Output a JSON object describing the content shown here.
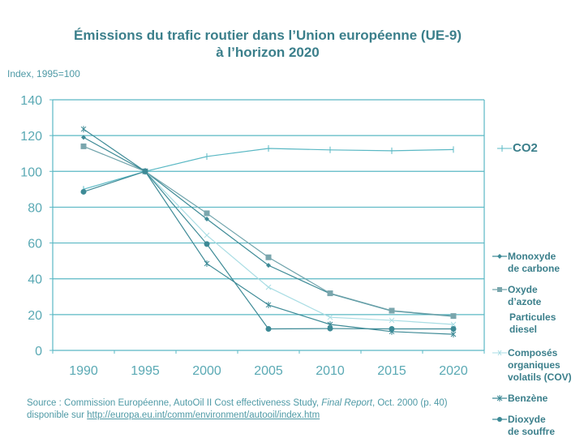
{
  "chart_data": {
    "type": "line",
    "title": "Émissions du trafic routier dans l’Union européenne (UE-9)",
    "subtitle": "à l’horizon 2020",
    "ylabel": "Index, 1995=100",
    "xlabel": "",
    "ylim": [
      0,
      140
    ],
    "yticks": [
      0,
      20,
      40,
      60,
      80,
      100,
      120,
      140
    ],
    "grid": true,
    "legend_position": "right",
    "categories": [
      "1990",
      "1995",
      "2000",
      "2005",
      "2010",
      "2015",
      "2020"
    ],
    "series": [
      {
        "name": "CO2",
        "marker": "plus",
        "color": "#5ab8c4",
        "values": [
          90,
          100,
          108.3,
          112.8,
          112,
          111.5,
          112.2
        ]
      },
      {
        "name": "Monoxyde de carbone",
        "marker": "diamond",
        "color": "#3d8a96",
        "values": [
          119,
          100,
          73.4,
          47.5,
          31.7,
          22,
          19
        ]
      },
      {
        "name": "Oxyde d’azote",
        "marker": "square",
        "color": "#6fa3ab",
        "values": [
          114,
          100,
          76.6,
          52,
          31.9,
          22.2,
          19.2
        ]
      },
      {
        "name": "Particules diesel",
        "marker": "none",
        "color": "#5ab8c4",
        "values": []
      },
      {
        "name": "Composés organiques volatils (COV)",
        "marker": "x",
        "color": "#a9dde4",
        "values": [
          null,
          100,
          64.3,
          35.3,
          18.5,
          16.8,
          14.5
        ]
      },
      {
        "name": "Benzène",
        "marker": "star",
        "color": "#3d8a96",
        "values": [
          123.6,
          100,
          48.5,
          25.4,
          14.5,
          10.5,
          9
        ]
      },
      {
        "name": "Dioxyde de souffre",
        "marker": "circle",
        "color": "#3d8a96",
        "values": [
          88.6,
          100,
          59.4,
          12,
          12.2,
          12,
          12
        ]
      }
    ]
  },
  "legend": {
    "co2": "CO2",
    "monoxyde": "Monoxyde\nde carbone",
    "oxyde": "Oxyde\nd’azote",
    "particules": "Particules\ndiesel",
    "cov": "Composés\norganiques\nvolatils (COV)",
    "benzene": "Benzène",
    "dioxyde": "Dioxyde\nde souffre"
  },
  "source": {
    "prefix": "Source : Commission Européenne, AutoOil II Cost effectiveness Study, ",
    "italic": "Final Report",
    "suffix": ", Oct. 2000 (p. 40)",
    "line2_prefix": "disponible sur ",
    "link": "http://europa.eu.int/comm/environment/autooil/index.htm"
  }
}
